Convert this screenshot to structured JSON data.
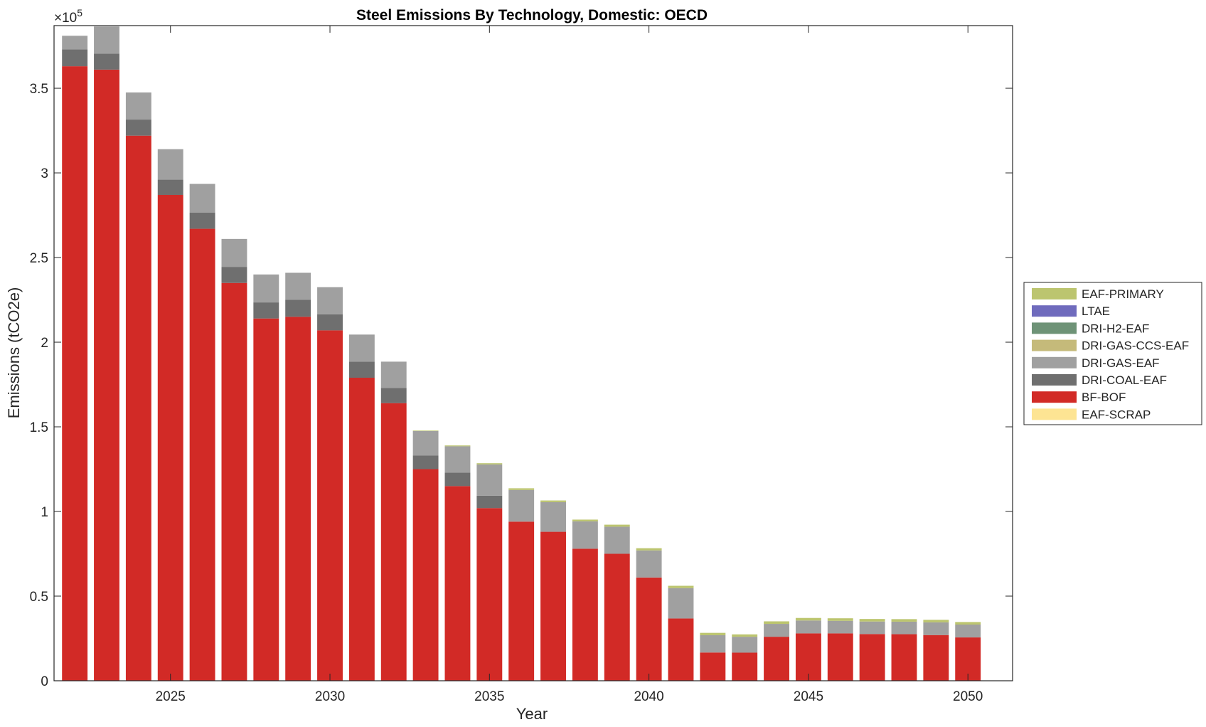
{
  "chart_data": {
    "type": "bar",
    "stacked": true,
    "title": "Steel Emissions By Technology, Domestic: OECD",
    "xlabel": "Year",
    "ylabel": "Emissions (tCO2e)",
    "y_exponent_label": "×10",
    "y_exponent_power": "5",
    "y_scale_factor": 100000,
    "xlim": [
      2021.35,
      2051.4
    ],
    "ylim": [
      0,
      387000
    ],
    "x_ticks": [
      2025,
      2030,
      2035,
      2040,
      2045,
      2050
    ],
    "x_tick_labels": [
      "2025",
      "2030",
      "2035",
      "2040",
      "2045",
      "2050"
    ],
    "y_ticks": [
      0,
      50000,
      100000,
      150000,
      200000,
      250000,
      300000,
      350000
    ],
    "y_tick_labels": [
      "0",
      "0.5",
      "1",
      "1.5",
      "2",
      "2.5",
      "3",
      "3.5"
    ],
    "grid": false,
    "legend_placement": "outside-right",
    "categories": [
      2022,
      2023,
      2024,
      2025,
      2026,
      2027,
      2028,
      2029,
      2030,
      2031,
      2032,
      2033,
      2034,
      2035,
      2036,
      2037,
      2038,
      2039,
      2040,
      2041,
      2042,
      2043,
      2044,
      2045,
      2046,
      2047,
      2048,
      2049,
      2050
    ],
    "series": [
      {
        "name": "EAF-SCRAP",
        "color": "#fde493",
        "values": [
          0,
          0,
          0,
          0,
          0,
          0,
          0,
          0,
          0,
          0,
          0,
          0,
          0,
          0,
          0,
          0,
          0,
          0,
          0,
          0,
          0,
          0,
          0,
          0,
          0,
          0,
          0,
          0,
          0
        ]
      },
      {
        "name": "BF-BOF",
        "color": "#d22a26",
        "values": [
          363000,
          361000,
          322000,
          287000,
          267000,
          235000,
          214000,
          215000,
          207000,
          179000,
          164000,
          125000,
          115000,
          102000,
          94000,
          88000,
          78000,
          75000,
          61000,
          36800,
          16700,
          16600,
          26000,
          28000,
          28000,
          27600,
          27500,
          27000,
          25600
        ]
      },
      {
        "name": "DRI-COAL-EAF",
        "color": "#6f6f6f",
        "values": [
          10000,
          9500,
          9500,
          9000,
          9500,
          9500,
          9500,
          10000,
          9500,
          9500,
          9000,
          8000,
          8000,
          7300,
          0,
          0,
          0,
          0,
          0,
          0,
          0,
          0,
          0,
          0,
          0,
          0,
          0,
          0,
          0
        ]
      },
      {
        "name": "DRI-GAS-EAF",
        "color": "#a0a0a0",
        "values": [
          8000,
          16000,
          16000,
          18000,
          17000,
          16500,
          16500,
          16000,
          16000,
          16000,
          15500,
          14500,
          15500,
          18500,
          18700,
          17500,
          16200,
          16000,
          16000,
          17900,
          10200,
          9400,
          7600,
          7600,
          7400,
          7400,
          7400,
          7500,
          7600
        ]
      },
      {
        "name": "DRI-GAS-CCS-EAF",
        "color": "#c5ba7a",
        "values": [
          0,
          0,
          0,
          0,
          0,
          0,
          0,
          0,
          0,
          0,
          0,
          0,
          0,
          0,
          0,
          0,
          0,
          0,
          0,
          0,
          0,
          0,
          0,
          0,
          0,
          0,
          0,
          0,
          0
        ]
      },
      {
        "name": "DRI-H2-EAF",
        "color": "#6e9377",
        "values": [
          0,
          0,
          0,
          0,
          0,
          0,
          0,
          0,
          0,
          0,
          0,
          0,
          0,
          0,
          0,
          0,
          0,
          0,
          0,
          0,
          0,
          0,
          0,
          0,
          0,
          0,
          0,
          0,
          0
        ]
      },
      {
        "name": "LTAE",
        "color": "#6f6bbd",
        "values": [
          0,
          0,
          0,
          0,
          0,
          0,
          0,
          0,
          0,
          0,
          0,
          0,
          0,
          0,
          0,
          0,
          0,
          0,
          0,
          0,
          0,
          0,
          0,
          0,
          0,
          0,
          0,
          0,
          0
        ]
      },
      {
        "name": "EAF-PRIMARY",
        "color": "#bcc56f",
        "values": [
          0,
          0,
          0,
          0,
          0,
          0,
          0,
          0,
          0,
          0,
          0,
          300,
          500,
          700,
          1000,
          1000,
          1000,
          1200,
          1300,
          1400,
          1400,
          1400,
          1500,
          1500,
          1500,
          1500,
          1500,
          1500,
          1500
        ]
      }
    ],
    "legend_order": [
      "EAF-PRIMARY",
      "LTAE",
      "DRI-H2-EAF",
      "DRI-GAS-CCS-EAF",
      "DRI-GAS-EAF",
      "DRI-COAL-EAF",
      "BF-BOF",
      "EAF-SCRAP"
    ]
  }
}
